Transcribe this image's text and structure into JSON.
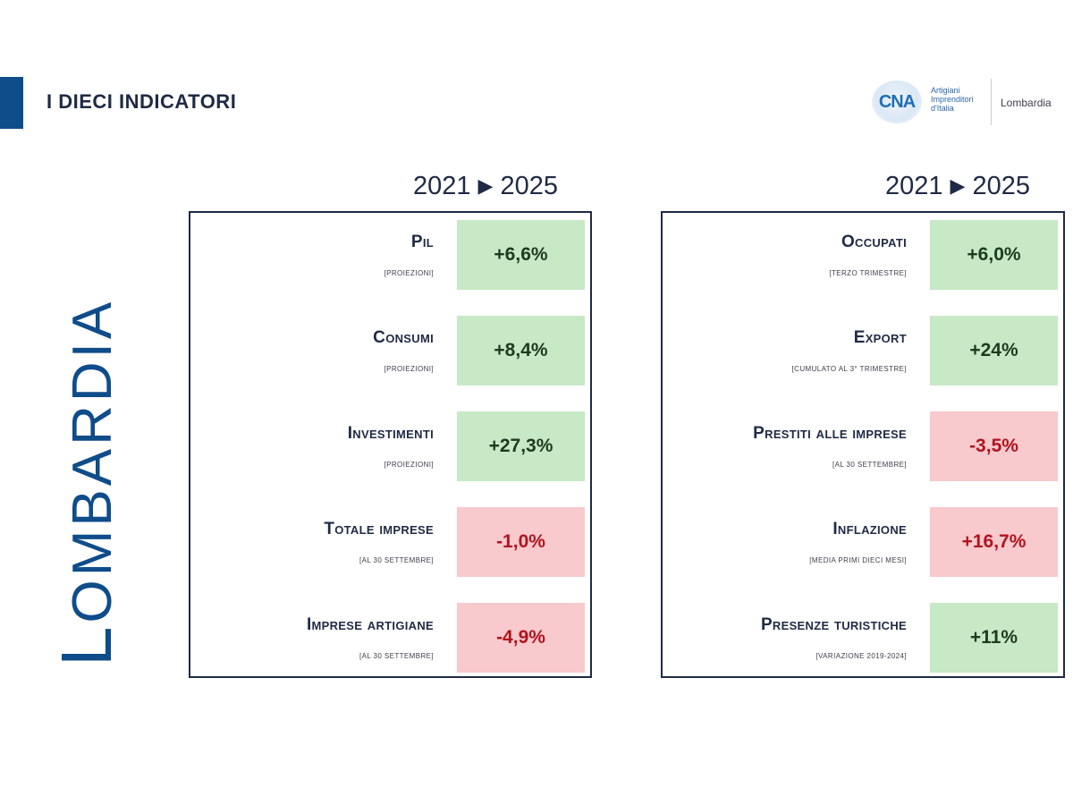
{
  "header": {
    "title": "I DIECI INDICATORI"
  },
  "logo": {
    "mark": "CNA",
    "tagline": [
      "Artigiani",
      "Imprenditori",
      "d'Italia"
    ],
    "region": "Lombardia"
  },
  "region_label": {
    "first_letter": "L",
    "rest": "OMBARDIA"
  },
  "periods": {
    "left": {
      "from": "2021",
      "arrow": "▶",
      "to": "2025"
    },
    "right": {
      "from": "2021",
      "arrow": "▶",
      "to": "2025"
    }
  },
  "colors": {
    "positive_bg": "#c7e9c6",
    "negative_bg": "#f8c9cd",
    "negative_text": "#b0141f",
    "accent": "#0f4c8a"
  },
  "left_indicators": [
    {
      "label": "Pil",
      "note": "[PROIEZIONI]",
      "value": "+6,6%",
      "trend": "positive"
    },
    {
      "label": "Consumi",
      "note": "[PROIEZIONI]",
      "value": "+8,4%",
      "trend": "positive"
    },
    {
      "label": "Investimenti",
      "note": "[PROIEZIONI]",
      "value": "+27,3%",
      "trend": "positive"
    },
    {
      "label": "Totale imprese",
      "note": "[AL 30 SETTEMBRE]",
      "value": "-1,0%",
      "trend": "negative"
    },
    {
      "label": "Imprese artigiane",
      "note": "[AL 30 SETTEMBRE]",
      "value": "-4,9%",
      "trend": "negative"
    }
  ],
  "right_indicators": [
    {
      "label": "Occupati",
      "note": "[TERZO TRIMESTRE]",
      "value": "+6,0%",
      "trend": "positive"
    },
    {
      "label": "Export",
      "note": "[CUMULATO AL 3° TRIMESTRE]",
      "value": "+24%",
      "trend": "positive"
    },
    {
      "label": "Prestiti alle imprese",
      "note": "[AL 30 SETTEMBRE]",
      "value": "-3,5%",
      "trend": "negative"
    },
    {
      "label": "Inflazione",
      "note": "[MEDIA PRIMI DIECI MESI]",
      "value": "+16,7%",
      "trend": "negative"
    },
    {
      "label": "Presenze turistiche",
      "note": "[VARIAZIONE 2019-2024]",
      "value": "+11%",
      "trend": "positive"
    }
  ]
}
